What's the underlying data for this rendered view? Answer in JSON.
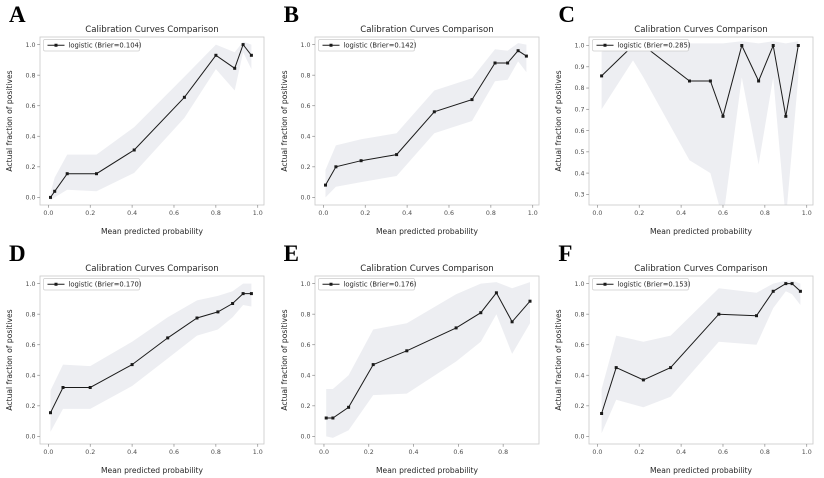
{
  "figure_title": "Calibration Curves Comparison",
  "style": {
    "line_color": "#1a1a1a",
    "marker_color": "#1a1a1a",
    "band_color": "#edeef2",
    "spine_color": "#c9c9c9",
    "tick_color": "#8a8a8a",
    "legend_border": "#cccccc",
    "background": "#ffffff"
  },
  "chart_data": [
    {
      "panel_label": "A",
      "type": "line",
      "title": "Calibration Curves Comparison",
      "xlabel": "Mean predicted probability",
      "ylabel": "Actual fraction of positives",
      "legend": "logistic (Brier=0.104)",
      "legend_position": "upper left",
      "x": [
        0.01,
        0.03,
        0.09,
        0.23,
        0.41,
        0.65,
        0.8,
        0.89,
        0.93,
        0.97
      ],
      "y": [
        0.0,
        0.04,
        0.155,
        0.155,
        0.31,
        0.655,
        0.93,
        0.845,
        1.0,
        0.93
      ],
      "band_upper": [
        0.03,
        0.13,
        0.28,
        0.28,
        0.46,
        0.79,
        1.0,
        0.95,
        1.02,
        1.0
      ],
      "band_lower": [
        -0.02,
        0.0,
        0.05,
        0.04,
        0.16,
        0.52,
        0.84,
        0.7,
        0.95,
        0.84
      ],
      "xticks": [
        0.0,
        0.2,
        0.4,
        0.6,
        0.8,
        1.0
      ],
      "yticks": [
        0.0,
        0.2,
        0.4,
        0.6,
        0.8,
        1.0
      ],
      "xlim": [
        -0.04,
        1.03
      ],
      "ylim": [
        -0.05,
        1.05
      ]
    },
    {
      "panel_label": "B",
      "type": "line",
      "title": "Calibration Curves Comparison",
      "xlabel": "Mean predicted probability",
      "ylabel": "Actual fraction of positives",
      "legend": "logistic (Brier=0.142)",
      "legend_position": "upper left",
      "x": [
        0.01,
        0.06,
        0.18,
        0.35,
        0.53,
        0.71,
        0.82,
        0.88,
        0.93,
        0.97
      ],
      "y": [
        0.08,
        0.2,
        0.24,
        0.28,
        0.56,
        0.64,
        0.88,
        0.88,
        0.96,
        0.925
      ],
      "band_upper": [
        0.18,
        0.34,
        0.38,
        0.42,
        0.7,
        0.78,
        0.97,
        0.96,
        1.01,
        1.0
      ],
      "band_lower": [
        0.0,
        0.07,
        0.1,
        0.14,
        0.42,
        0.5,
        0.76,
        0.77,
        0.89,
        0.82
      ],
      "xticks": [
        0.0,
        0.2,
        0.4,
        0.6,
        0.8,
        1.0
      ],
      "yticks": [
        0.0,
        0.2,
        0.4,
        0.6,
        0.8,
        1.0
      ],
      "xlim": [
        -0.04,
        1.03
      ],
      "ylim": [
        -0.05,
        1.05
      ]
    },
    {
      "panel_label": "C",
      "type": "line",
      "title": "Calibration Curves Comparison",
      "xlabel": "Mean predicted probability",
      "ylabel": "Actual fraction of positives",
      "legend": "logistic (Brier=0.285)",
      "legend_position": "upper left",
      "x": [
        0.02,
        0.17,
        0.22,
        0.44,
        0.54,
        0.6,
        0.69,
        0.77,
        0.84,
        0.9,
        0.96
      ],
      "y": [
        0.857,
        1.0,
        1.0,
        0.833,
        0.833,
        0.667,
        1.0,
        0.833,
        1.0,
        0.667,
        1.0
      ],
      "band_upper": [
        0.97,
        1.02,
        1.02,
        1.01,
        1.01,
        1.01,
        1.02,
        1.01,
        1.02,
        1.01,
        1.02
      ],
      "band_lower": [
        0.7,
        0.93,
        0.85,
        0.46,
        0.4,
        0.18,
        0.85,
        0.44,
        0.85,
        0.18,
        0.85
      ],
      "xticks": [
        0.0,
        0.2,
        0.4,
        0.6,
        0.8,
        1.0
      ],
      "yticks": [
        0.3,
        0.4,
        0.5,
        0.6,
        0.7,
        0.8,
        0.9,
        1.0
      ],
      "xlim": [
        -0.04,
        1.03
      ],
      "ylim": [
        0.25,
        1.04
      ]
    },
    {
      "panel_label": "D",
      "type": "line",
      "title": "Calibration Curves Comparison",
      "xlabel": "Mean predicted probability",
      "ylabel": "Actual fraction of positives",
      "legend": "logistic (Brier=0.170)",
      "legend_position": "upper left",
      "x": [
        0.01,
        0.07,
        0.2,
        0.4,
        0.57,
        0.71,
        0.81,
        0.88,
        0.93,
        0.97
      ],
      "y": [
        0.155,
        0.32,
        0.32,
        0.47,
        0.645,
        0.775,
        0.815,
        0.87,
        0.935,
        0.935
      ],
      "band_upper": [
        0.3,
        0.47,
        0.46,
        0.62,
        0.78,
        0.89,
        0.92,
        0.95,
        1.0,
        1.0
      ],
      "band_lower": [
        0.03,
        0.18,
        0.18,
        0.33,
        0.51,
        0.66,
        0.7,
        0.78,
        0.86,
        0.85
      ],
      "xticks": [
        0.0,
        0.2,
        0.4,
        0.6,
        0.8,
        1.0
      ],
      "yticks": [
        0.0,
        0.2,
        0.4,
        0.6,
        0.8,
        1.0
      ],
      "xlim": [
        -0.04,
        1.03
      ],
      "ylim": [
        -0.05,
        1.05
      ]
    },
    {
      "panel_label": "E",
      "type": "line",
      "title": "Calibration Curves Comparison",
      "xlabel": "Mean predicted probability",
      "ylabel": "Actual fraction of positives",
      "legend": "logistic (Brier=0.176)",
      "legend_position": "upper left",
      "x": [
        0.01,
        0.04,
        0.11,
        0.22,
        0.37,
        0.59,
        0.7,
        0.77,
        0.84,
        0.92
      ],
      "y": [
        0.12,
        0.12,
        0.19,
        0.47,
        0.56,
        0.71,
        0.81,
        0.94,
        0.75,
        0.885
      ],
      "band_upper": [
        0.31,
        0.31,
        0.4,
        0.7,
        0.74,
        0.93,
        1.0,
        1.01,
        0.97,
        1.01
      ],
      "band_lower": [
        0.0,
        -0.01,
        0.04,
        0.27,
        0.28,
        0.49,
        0.62,
        0.8,
        0.54,
        0.74
      ],
      "xticks": [
        0.0,
        0.2,
        0.4,
        0.6,
        0.8
      ],
      "yticks": [
        0.0,
        0.2,
        0.4,
        0.6,
        0.8,
        1.0
      ],
      "xlim": [
        -0.04,
        0.96
      ],
      "ylim": [
        -0.05,
        1.05
      ]
    },
    {
      "panel_label": "F",
      "type": "line",
      "title": "Calibration Curves Comparison",
      "xlabel": "Mean predicted probability",
      "ylabel": "Actual fraction of positives",
      "legend": "logistic (Brier=0.153)",
      "legend_position": "upper left",
      "x": [
        0.02,
        0.09,
        0.22,
        0.35,
        0.58,
        0.76,
        0.84,
        0.9,
        0.93,
        0.97
      ],
      "y": [
        0.15,
        0.45,
        0.37,
        0.45,
        0.8,
        0.79,
        0.95,
        1.0,
        1.0,
        0.95
      ],
      "band_upper": [
        0.31,
        0.66,
        0.62,
        0.66,
        0.97,
        0.94,
        1.0,
        1.02,
        1.02,
        1.0
      ],
      "band_lower": [
        0.02,
        0.24,
        0.19,
        0.26,
        0.62,
        0.6,
        0.84,
        0.95,
        0.93,
        0.86
      ],
      "xticks": [
        0.0,
        0.2,
        0.4,
        0.6,
        0.8,
        1.0
      ],
      "yticks": [
        0.0,
        0.2,
        0.4,
        0.6,
        0.8,
        1.0
      ],
      "xlim": [
        -0.04,
        1.03
      ],
      "ylim": [
        -0.05,
        1.05
      ]
    }
  ]
}
